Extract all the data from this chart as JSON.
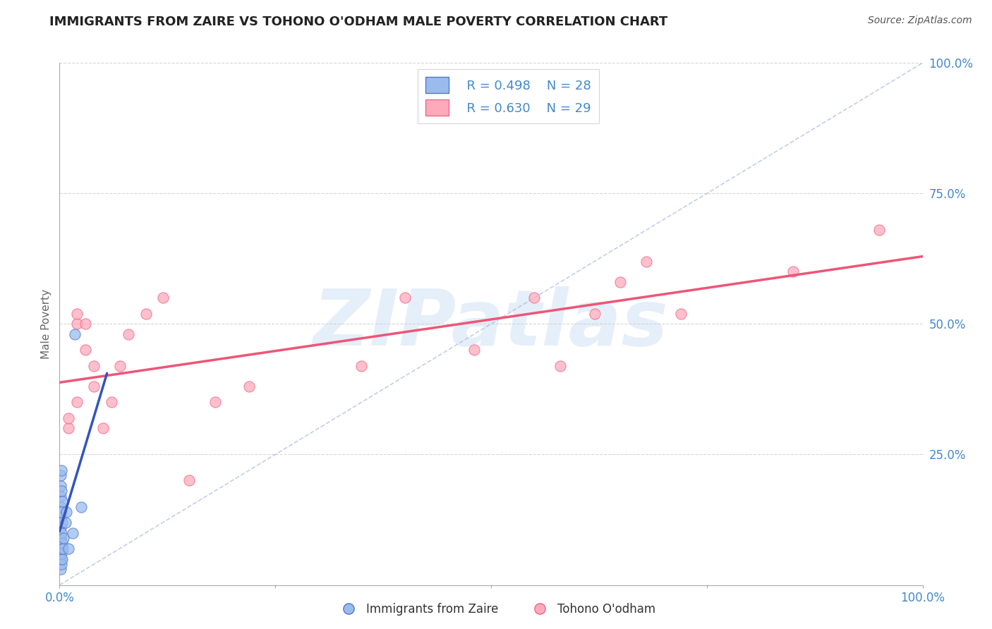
{
  "title": "IMMIGRANTS FROM ZAIRE VS TOHONO O'ODHAM MALE POVERTY CORRELATION CHART",
  "source": "Source: ZipAtlas.com",
  "ylabel": "Male Poverty",
  "legend_blue_r": "R = 0.498",
  "legend_blue_n": "N = 28",
  "legend_pink_r": "R = 0.630",
  "legend_pink_n": "N = 29",
  "legend_blue_label": "Immigrants from Zaire",
  "legend_pink_label": "Tohono O'odham",
  "blue_color": "#99BBEE",
  "pink_color": "#FFAABB",
  "blue_edge_color": "#5577CC",
  "pink_edge_color": "#EE6688",
  "blue_line_color": "#3355BB",
  "pink_line_color": "#EE5577",
  "watermark": "ZIPatlas",
  "watermark_color": "#AACCEE",
  "grid_color": "#CCCCCC",
  "background_color": "#FFFFFF",
  "tick_label_color": "#4488CC",
  "blue_x": [
    0.001,
    0.001,
    0.001,
    0.001,
    0.001,
    0.001,
    0.001,
    0.001,
    0.001,
    0.001,
    0.002,
    0.002,
    0.002,
    0.002,
    0.002,
    0.002,
    0.003,
    0.003,
    0.003,
    0.003,
    0.004,
    0.005,
    0.007,
    0.008,
    0.01,
    0.015,
    0.018,
    0.025
  ],
  "blue_y": [
    0.03,
    0.05,
    0.07,
    0.09,
    0.11,
    0.13,
    0.15,
    0.17,
    0.19,
    0.21,
    0.04,
    0.06,
    0.1,
    0.14,
    0.18,
    0.22,
    0.05,
    0.08,
    0.12,
    0.16,
    0.07,
    0.09,
    0.12,
    0.14,
    0.07,
    0.1,
    0.48,
    0.15
  ],
  "pink_x": [
    0.01,
    0.01,
    0.02,
    0.02,
    0.02,
    0.03,
    0.03,
    0.04,
    0.04,
    0.05,
    0.06,
    0.07,
    0.08,
    0.1,
    0.12,
    0.15,
    0.18,
    0.22,
    0.35,
    0.4,
    0.48,
    0.55,
    0.58,
    0.62,
    0.65,
    0.68,
    0.72,
    0.85,
    0.95
  ],
  "pink_y": [
    0.3,
    0.32,
    0.35,
    0.5,
    0.52,
    0.45,
    0.5,
    0.38,
    0.42,
    0.3,
    0.35,
    0.42,
    0.48,
    0.52,
    0.55,
    0.2,
    0.35,
    0.38,
    0.42,
    0.55,
    0.45,
    0.55,
    0.42,
    0.52,
    0.58,
    0.62,
    0.52,
    0.6,
    0.68
  ],
  "xlim": [
    0.0,
    1.0
  ],
  "ylim": [
    0.0,
    1.0
  ],
  "yticks": [
    0.0,
    0.25,
    0.5,
    0.75,
    1.0
  ],
  "ytick_labels": [
    "",
    "25.0%",
    "50.0%",
    "75.0%",
    "100.0%"
  ],
  "xticks": [
    0.0,
    0.25,
    0.5,
    0.75,
    1.0
  ],
  "xtick_labels": [
    "0.0%",
    "",
    "",
    "",
    "100.0%"
  ]
}
